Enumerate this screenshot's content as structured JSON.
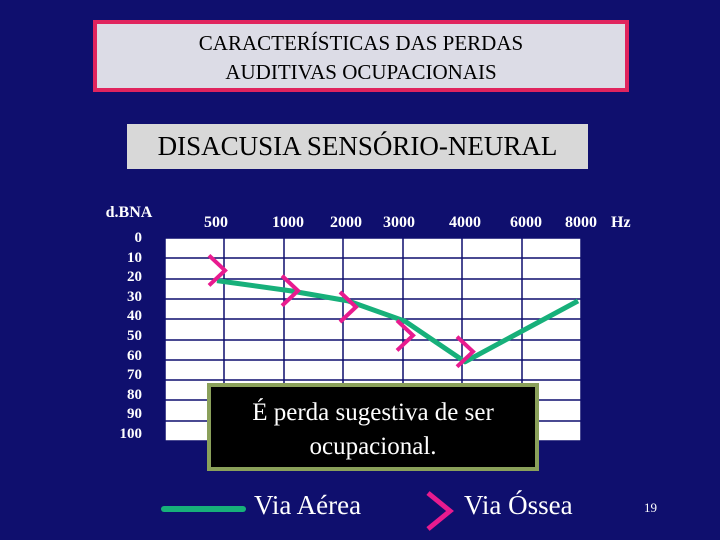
{
  "header": {
    "title_line1": "CARACTERÍSTICAS DAS PERDAS",
    "title_line2": "AUDITIVAS OCUPACIONAIS",
    "subtitle": "DISACUSIA SENSÓRIO-NEURAL"
  },
  "note": {
    "line1": "É perda sugestiva de ser",
    "line2": "ocupacional."
  },
  "legend": {
    "air_label": "Via Aérea",
    "bone_label": "Via Óssea"
  },
  "page_number": "19",
  "colors": {
    "background": "#0f0f6e",
    "air": "#17b07a",
    "bone": "#e81b8f",
    "title_border": "#e0245e",
    "note_border": "#8aa05a"
  },
  "chart_data": {
    "type": "line",
    "ylabel": "d.BNA",
    "xunit": "Hz",
    "x_ticks": [
      "500",
      "1000",
      "2000",
      "3000",
      "4000",
      "6000",
      "8000"
    ],
    "y_ticks": [
      "0",
      "10",
      "20",
      "30",
      "40",
      "50",
      "60",
      "70",
      "80",
      "90",
      "100"
    ],
    "ylim": [
      0,
      100
    ],
    "y_inverted": true,
    "grid": true,
    "series": [
      {
        "name": "Via Aérea",
        "marker": "line",
        "points": [
          {
            "x": "500",
            "y": 20
          },
          {
            "x": "1000",
            "y": 25
          },
          {
            "x": "2000",
            "y": 30
          },
          {
            "x": "3000",
            "y": 40
          },
          {
            "x": "4000",
            "y": 60
          },
          {
            "x": "8000",
            "y": 30
          }
        ]
      },
      {
        "name": "Via Óssea",
        "marker": ">",
        "points": [
          {
            "x": "500",
            "y": 15
          },
          {
            "x": "1000",
            "y": 25
          },
          {
            "x": "2000",
            "y": 33
          },
          {
            "x": "3000",
            "y": 47
          },
          {
            "x": "4000",
            "y": 55
          }
        ]
      }
    ]
  }
}
